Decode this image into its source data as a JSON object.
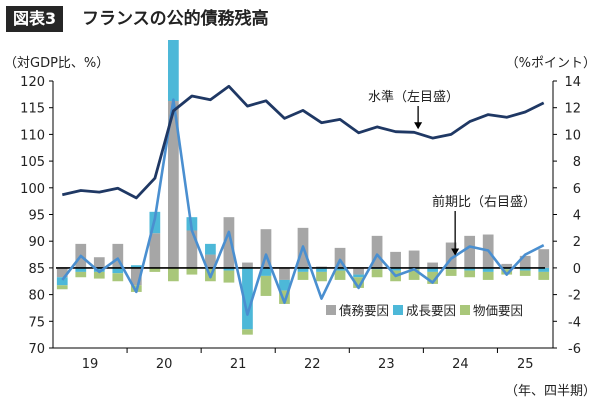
{
  "header": {
    "tag": "図表3",
    "title": "フランスの公的債務残高"
  },
  "colors": {
    "level_line": "#1f3864",
    "contrib_line": "#4a8fd0",
    "debt_bar": "#a6a6a6",
    "growth_bar": "#4db8d8",
    "price_bar": "#a9c77a",
    "zero_line": "#000000",
    "axis": "#000000"
  },
  "chart_data": {
    "type": "bar+line",
    "left_axis_label": "（対GDP比、%）",
    "right_axis_label": "（%ポイント）",
    "x_unit_label": "（年、四半期）",
    "left_ylim": [
      70,
      120
    ],
    "left_ticks": [
      70,
      75,
      80,
      85,
      90,
      95,
      100,
      105,
      110,
      115,
      120
    ],
    "right_ylim": [
      -6,
      14
    ],
    "right_ticks": [
      -6,
      -4,
      -2,
      0,
      2,
      4,
      6,
      8,
      10,
      12,
      14
    ],
    "year_labels": [
      "19",
      "20",
      "21",
      "22",
      "23",
      "24",
      "25"
    ],
    "quarters_per_year": 4,
    "level_series": {
      "name": "水準（左目盛）",
      "values": [
        98.7,
        99.5,
        99.2,
        99.9,
        98.1,
        101.8,
        114.4,
        117.2,
        116.5,
        119.0,
        115.3,
        116.3,
        113.0,
        114.5,
        112.2,
        112.8,
        110.3,
        111.4,
        110.5,
        110.4,
        109.3,
        110.0,
        112.4,
        113.7,
        113.2,
        114.2,
        115.9
      ]
    },
    "contrib_series": {
      "name": "前期比（右目盛）",
      "values": [
        -0.9,
        0.9,
        -0.3,
        0.7,
        -1.8,
        3.7,
        12.6,
        2.8,
        -0.7,
        2.7,
        -3.5,
        1.0,
        -2.6,
        1.6,
        -2.3,
        0.6,
        -1.5,
        1.0,
        -0.6,
        -0.1,
        -1.1,
        0.7,
        1.6,
        1.3,
        -0.5,
        1.0,
        1.7
      ]
    },
    "debt_factor": {
      "name": "債務要因",
      "values": [
        -0.7,
        1.8,
        0.8,
        1.8,
        -1.3,
        2.6,
        12.5,
        2.8,
        1.0,
        3.8,
        0.4,
        2.9,
        -0.9,
        3.0,
        0.1,
        1.5,
        -0.5,
        2.4,
        1.2,
        1.3,
        0.4,
        1.9,
        2.4,
        2.5,
        0.3,
        0.9,
        1.4
      ]
    },
    "growth_factor": {
      "name": "成長要因",
      "values": [
        -0.6,
        -0.3,
        -0.3,
        -0.4,
        0.2,
        1.6,
        9.0,
        1.0,
        0.8,
        -0.2,
        -4.6,
        -0.6,
        -0.8,
        -0.3,
        -0.3,
        -0.2,
        -0.2,
        -0.1,
        -0.2,
        -0.1,
        -0.3,
        -0.1,
        -0.2,
        -0.3,
        -0.1,
        -0.2,
        -0.3
      ]
    },
    "price_factor": {
      "name": "物価要因",
      "values": [
        -0.3,
        -0.4,
        -0.5,
        -0.6,
        -0.5,
        -0.3,
        -1.0,
        -0.5,
        -1.0,
        -0.9,
        -0.4,
        -1.5,
        -1.0,
        -0.6,
        -0.7,
        -0.7,
        -0.8,
        -0.6,
        -0.8,
        -0.8,
        -0.9,
        -0.5,
        -0.5,
        -0.6,
        -0.4,
        -0.4,
        -0.6
      ]
    },
    "annotations": {
      "level": "水準（左目盛）",
      "contrib": "前期比（右目盛）"
    },
    "legend": {
      "position": "bottom-right",
      "items": [
        "債務要因",
        "成長要因",
        "物価要因"
      ]
    }
  }
}
